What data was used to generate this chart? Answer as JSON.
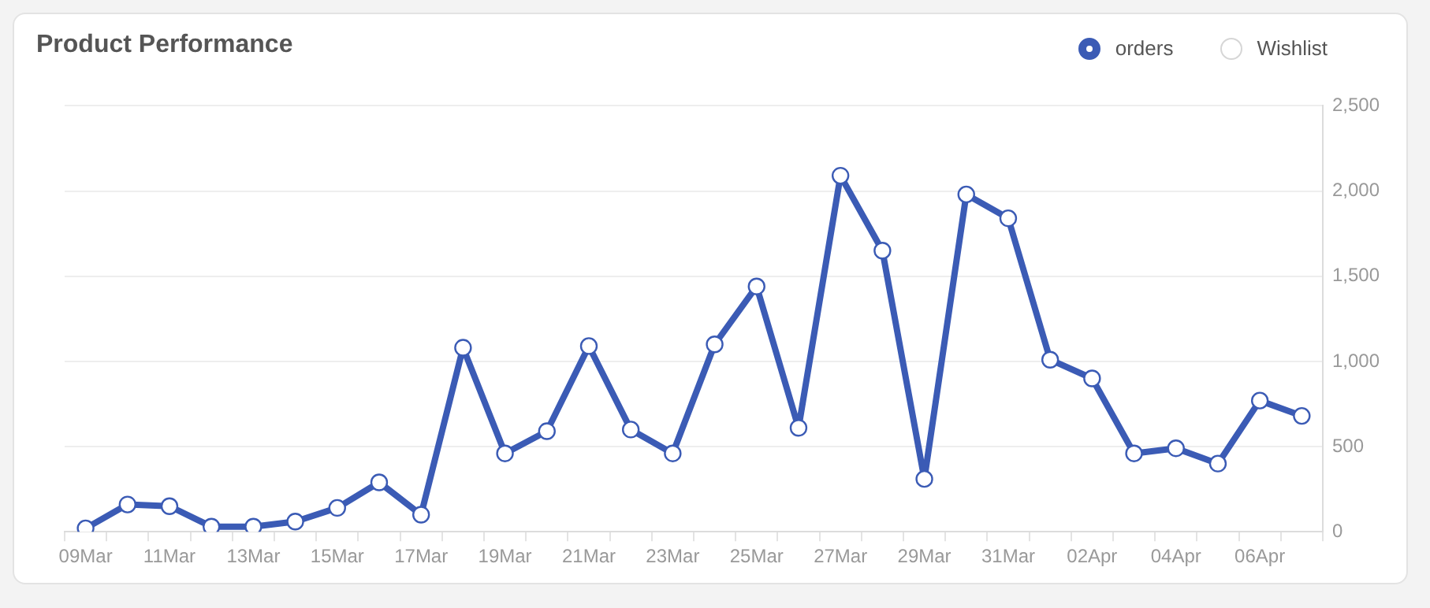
{
  "chart_data": {
    "type": "line",
    "title": "Product Performance",
    "categories": [
      "09Mar",
      null,
      "11Mar",
      null,
      "13Mar",
      null,
      "15Mar",
      null,
      "17Mar",
      null,
      "19Mar",
      null,
      "21Mar",
      null,
      "23Mar",
      null,
      "25Mar",
      null,
      "27Mar",
      null,
      "29Mar",
      null,
      "31Mar",
      null,
      "02Apr",
      null,
      "04Apr",
      null,
      "06Apr",
      null
    ],
    "series": [
      {
        "name": "orders",
        "color": "#3b5bb5",
        "values": [
          20,
          160,
          150,
          30,
          30,
          60,
          140,
          290,
          100,
          1080,
          460,
          590,
          1090,
          600,
          460,
          1100,
          1440,
          610,
          2090,
          1650,
          310,
          1980,
          1840,
          1010,
          900,
          460,
          490,
          400,
          770,
          680
        ]
      },
      {
        "name": "Wishlist",
        "color": "#d6d6d6",
        "values": [
          null,
          null,
          null,
          null,
          null,
          null,
          null,
          null,
          null,
          null,
          null,
          null,
          null,
          null,
          null,
          null,
          null,
          null,
          null,
          null,
          null,
          null,
          null,
          null,
          null,
          null,
          null,
          null,
          null,
          null
        ]
      }
    ],
    "ylim": [
      0,
      2500
    ],
    "yticks": [
      0,
      {
        "value": 500,
        "label": "500"
      },
      {
        "value": 1000,
        "label": "1,000"
      },
      {
        "value": 1500,
        "label": "1,500"
      },
      {
        "value": 2000,
        "label": "2,000"
      },
      {
        "value": 2500,
        "label": "2,500"
      }
    ],
    "grid": "y",
    "legend": "top right",
    "marker": "circle",
    "line_style": "solid"
  }
}
